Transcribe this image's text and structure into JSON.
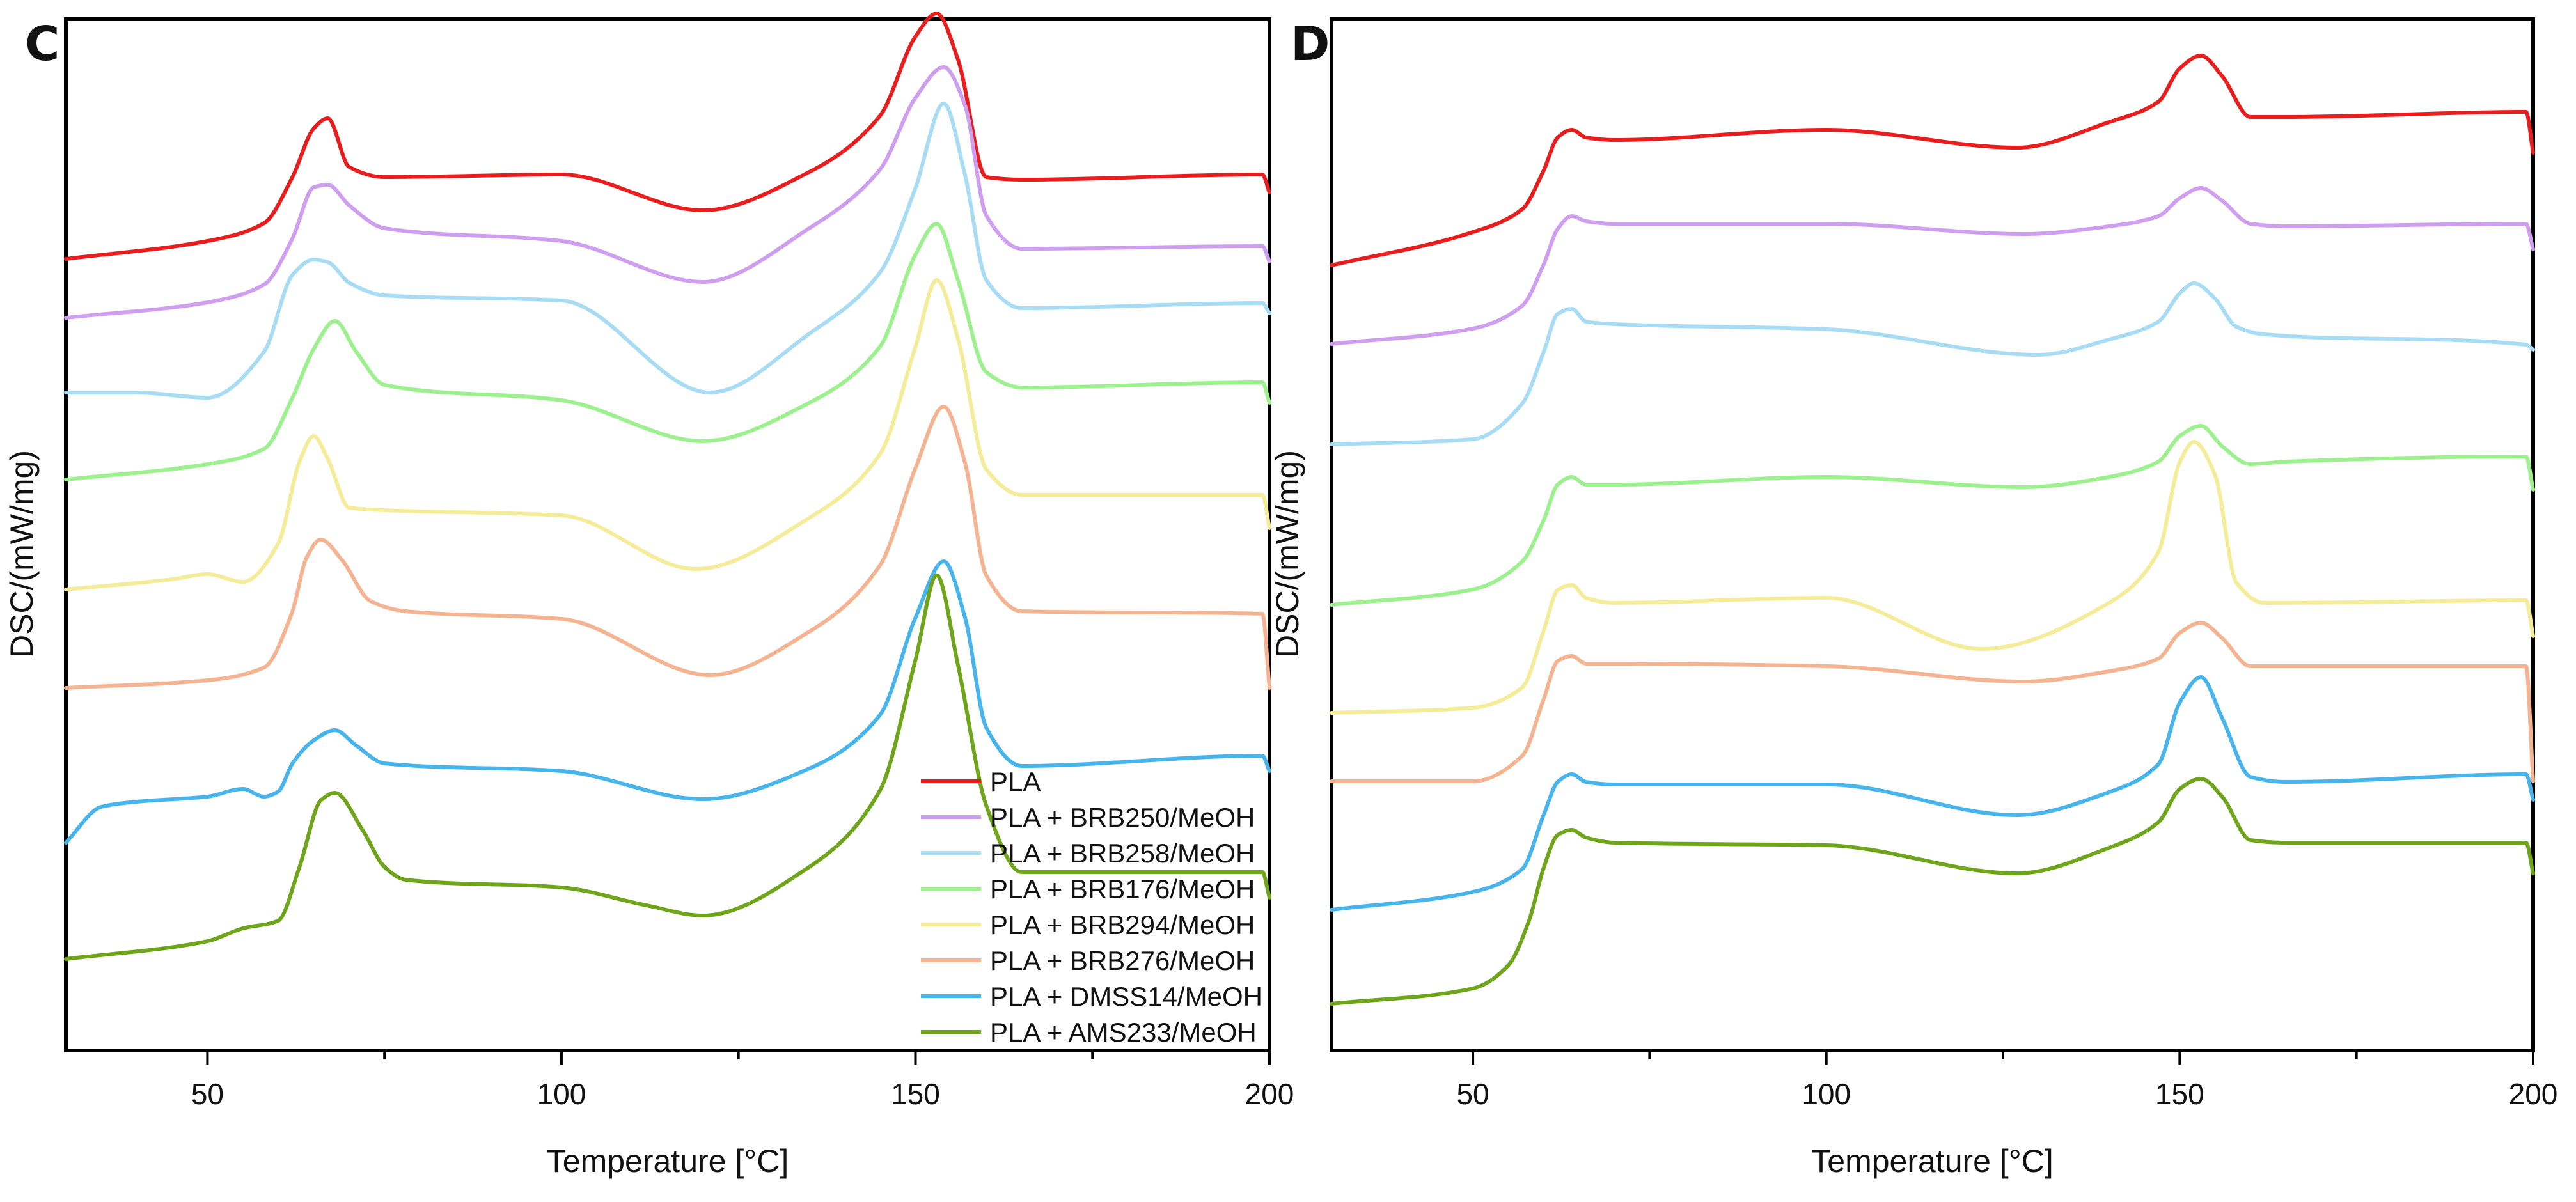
{
  "chart_data": [
    {
      "panel": "C",
      "type": "line",
      "xlabel": "Temperature [°C]",
      "ylabel": "DSC/(mW/mg)",
      "xlim": [
        30,
        200
      ],
      "xticks": [
        50,
        100,
        150,
        200
      ],
      "grid": false,
      "legend_position": "bottom-right",
      "series": [
        {
          "name": "PLA",
          "color": "#e81e1e",
          "x": [
            30,
            50,
            58,
            62,
            65,
            67,
            70,
            75,
            100,
            120,
            135,
            145,
            150,
            153,
            156,
            160,
            165,
            199,
            200
          ],
          "y": [
            0.0,
            0.7,
            1.4,
            3.2,
            5.1,
            5.5,
            3.6,
            3.2,
            3.3,
            1.9,
            3.4,
            5.6,
            8.7,
            9.6,
            7.8,
            3.2,
            3.1,
            3.3,
            2.6
          ]
        },
        {
          "name": "PLA + BRB250/MeOH",
          "color": "#cf9eef",
          "x": [
            30,
            50,
            58,
            62,
            65,
            67,
            70,
            75,
            100,
            120,
            135,
            145,
            150,
            154,
            157,
            160,
            165,
            199,
            200
          ],
          "y": [
            0.0,
            0.6,
            1.3,
            3.1,
            5.1,
            5.2,
            4.4,
            3.5,
            3.0,
            1.4,
            3.5,
            5.8,
            8.6,
            9.8,
            8.3,
            4.0,
            2.7,
            2.8,
            2.2
          ]
        },
        {
          "name": "PLA + BRB258/MeOH",
          "color": "#a8dcf4",
          "x": [
            30,
            40,
            50,
            58,
            62,
            65,
            67,
            70,
            75,
            100,
            121,
            135,
            145,
            150,
            154,
            157,
            160,
            165,
            199,
            200
          ],
          "y": [
            0.0,
            0.0,
            -0.2,
            1.6,
            4.6,
            5.2,
            5.1,
            4.3,
            3.8,
            3.6,
            0.0,
            2.3,
            4.7,
            8.0,
            11.3,
            8.5,
            4.4,
            3.3,
            3.5,
            3.1
          ]
        },
        {
          "name": "PLA + BRB176/MeOH",
          "color": "#9cf08e",
          "x": [
            30,
            50,
            58,
            62,
            65,
            68,
            71,
            75,
            100,
            120,
            135,
            145,
            150,
            153,
            156,
            160,
            165,
            199,
            200
          ],
          "y": [
            0.0,
            0.6,
            1.2,
            3.2,
            5.1,
            6.2,
            5.0,
            3.7,
            3.1,
            1.5,
            3.0,
            5.2,
            8.8,
            10.0,
            7.8,
            4.2,
            3.6,
            3.8,
            3.0
          ]
        },
        {
          "name": "PLA + BRB294/MeOH",
          "color": "#f4ec98",
          "x": [
            30,
            45,
            50,
            55,
            60,
            63,
            65,
            67,
            70,
            75,
            100,
            119,
            135,
            145,
            150,
            153,
            156,
            160,
            165,
            199,
            200
          ],
          "y": [
            0.0,
            0.4,
            0.6,
            0.3,
            1.8,
            5.0,
            6.0,
            5.1,
            3.2,
            3.1,
            2.9,
            0.8,
            2.8,
            5.3,
            9.5,
            12.1,
            9.8,
            4.7,
            3.7,
            3.7,
            2.4
          ]
        },
        {
          "name": "PLA + BRB276/MeOH",
          "color": "#f4b491",
          "x": [
            30,
            50,
            58,
            62,
            64,
            66,
            69,
            73,
            78,
            100,
            121,
            135,
            145,
            150,
            154,
            157,
            160,
            165,
            199,
            200
          ],
          "y": [
            0.0,
            0.3,
            0.8,
            3.0,
            5.1,
            5.8,
            5.0,
            3.4,
            3.0,
            2.7,
            0.5,
            2.2,
            4.8,
            8.6,
            11.0,
            8.8,
            4.4,
            3.0,
            2.9,
            0.0
          ]
        },
        {
          "name": "PLA + DMSS14/MeOH",
          "color": "#48b4ec",
          "x": [
            30,
            35,
            40,
            50,
            55,
            58,
            60,
            62,
            65,
            68,
            71,
            75,
            100,
            120,
            135,
            145,
            150,
            154,
            157,
            160,
            165,
            199,
            200
          ],
          "y": [
            0.0,
            1.4,
            1.6,
            1.8,
            2.1,
            1.8,
            2.0,
            3.1,
            4.0,
            4.4,
            3.8,
            3.1,
            2.8,
            1.7,
            2.9,
            5.0,
            8.8,
            11.0,
            8.8,
            4.5,
            3.0,
            3.4,
            2.8
          ]
        },
        {
          "name": "PLA + AMS233/MeOH",
          "color": "#6ea51a",
          "x": [
            30,
            50,
            55,
            60,
            63,
            66,
            68,
            72,
            75,
            78,
            100,
            112,
            120,
            135,
            145,
            150,
            153,
            156,
            160,
            165,
            199,
            200
          ],
          "y": [
            0.0,
            0.7,
            1.2,
            1.5,
            3.6,
            6.2,
            6.5,
            5.0,
            3.6,
            3.1,
            2.8,
            2.1,
            1.7,
            3.6,
            6.6,
            11.7,
            15.0,
            11.5,
            6.0,
            3.4,
            3.4,
            2.4
          ]
        }
      ]
    },
    {
      "panel": "D",
      "type": "line",
      "xlabel": "Temperature [°C]",
      "ylabel": "DSC/(mW/mg)",
      "xlim": [
        30,
        200
      ],
      "xticks": [
        50,
        100,
        150,
        200
      ],
      "grid": false,
      "legend_position": "none",
      "series": [
        {
          "name": "PLA",
          "color": "#e81e1e",
          "x": [
            30,
            50,
            57,
            60,
            62,
            64,
            66,
            70,
            100,
            127,
            140,
            147,
            150,
            153,
            156,
            160,
            165,
            199,
            200
          ],
          "y": [
            0.0,
            1.3,
            2.2,
            3.7,
            5.0,
            5.3,
            5.0,
            4.9,
            5.3,
            4.6,
            5.6,
            6.4,
            7.7,
            8.2,
            7.4,
            5.8,
            5.8,
            6.0,
            4.4
          ]
        },
        {
          "name": "PLA + BRB250/MeOH",
          "color": "#cf9eef",
          "x": [
            30,
            50,
            57,
            60,
            62,
            64,
            66,
            70,
            100,
            128,
            140,
            147,
            150,
            153,
            156,
            160,
            165,
            199,
            200
          ],
          "y": [
            0.0,
            0.6,
            1.5,
            3.1,
            4.5,
            5.0,
            4.8,
            4.7,
            4.7,
            4.3,
            4.6,
            5.0,
            5.7,
            6.1,
            5.6,
            4.7,
            4.6,
            4.7,
            3.7
          ]
        },
        {
          "name": "PLA + BRB258/MeOH",
          "color": "#a8dcf4",
          "x": [
            30,
            50,
            57,
            60,
            62,
            64,
            66,
            70,
            100,
            130,
            140,
            147,
            150,
            152,
            155,
            158,
            162,
            199,
            200
          ],
          "y": [
            0.0,
            0.2,
            1.6,
            3.6,
            5.1,
            5.3,
            4.8,
            4.7,
            4.5,
            3.5,
            4.1,
            4.8,
            5.9,
            6.3,
            5.7,
            4.6,
            4.3,
            3.9,
            3.7
          ]
        },
        {
          "name": "PLA + BRB176/MeOH",
          "color": "#9cf08e",
          "x": [
            30,
            50,
            57,
            60,
            62,
            64,
            66,
            70,
            100,
            128,
            140,
            147,
            150,
            153,
            156,
            160,
            165,
            199,
            200
          ],
          "y": [
            0.0,
            0.6,
            1.7,
            3.3,
            4.7,
            5.0,
            4.7,
            4.7,
            5.0,
            4.6,
            5.0,
            5.6,
            6.6,
            7.0,
            6.2,
            5.5,
            5.6,
            5.8,
            4.5
          ]
        },
        {
          "name": "PLA + BRB294/MeOH",
          "color": "#f4ec98",
          "x": [
            30,
            50,
            57,
            60,
            62,
            64,
            66,
            70,
            100,
            122,
            140,
            147,
            150,
            152,
            155,
            158,
            162,
            199,
            200
          ],
          "y": [
            0.0,
            0.2,
            1.0,
            3.2,
            4.8,
            5.0,
            4.5,
            4.3,
            4.5,
            2.5,
            4.3,
            6.3,
            9.8,
            10.6,
            9.3,
            5.1,
            4.3,
            4.4,
            3.0
          ]
        },
        {
          "name": "PLA + BRB276/MeOH",
          "color": "#f4b491",
          "x": [
            30,
            50,
            57,
            60,
            62,
            64,
            66,
            70,
            100,
            128,
            140,
            147,
            150,
            153,
            156,
            160,
            165,
            199,
            200
          ],
          "y": [
            0.0,
            0.0,
            1.0,
            3.2,
            4.7,
            4.9,
            4.6,
            4.6,
            4.5,
            3.9,
            4.3,
            4.8,
            5.8,
            6.2,
            5.6,
            4.5,
            4.5,
            4.5,
            0.0
          ]
        },
        {
          "name": "PLA + DMSS14/MeOH",
          "color": "#48b4ec",
          "x": [
            30,
            50,
            57,
            60,
            62,
            64,
            66,
            70,
            100,
            127,
            140,
            147,
            150,
            153,
            156,
            160,
            165,
            199,
            200
          ],
          "y": [
            0.0,
            0.7,
            1.6,
            3.7,
            5.0,
            5.3,
            5.0,
            4.9,
            4.9,
            3.7,
            4.6,
            5.7,
            8.1,
            9.1,
            7.5,
            5.2,
            5.0,
            5.3,
            4.3
          ]
        },
        {
          "name": "PLA + AMS233/MeOH",
          "color": "#6ea51a",
          "x": [
            30,
            50,
            55,
            58,
            60,
            62,
            64,
            66,
            70,
            100,
            127,
            140,
            147,
            150,
            153,
            156,
            160,
            165,
            199,
            200
          ],
          "y": [
            0.0,
            0.6,
            1.5,
            3.3,
            5.3,
            6.6,
            6.8,
            6.5,
            6.3,
            6.2,
            5.1,
            6.1,
            7.1,
            8.4,
            8.8,
            8.1,
            6.4,
            6.3,
            6.3,
            5.1
          ]
        }
      ]
    }
  ]
}
